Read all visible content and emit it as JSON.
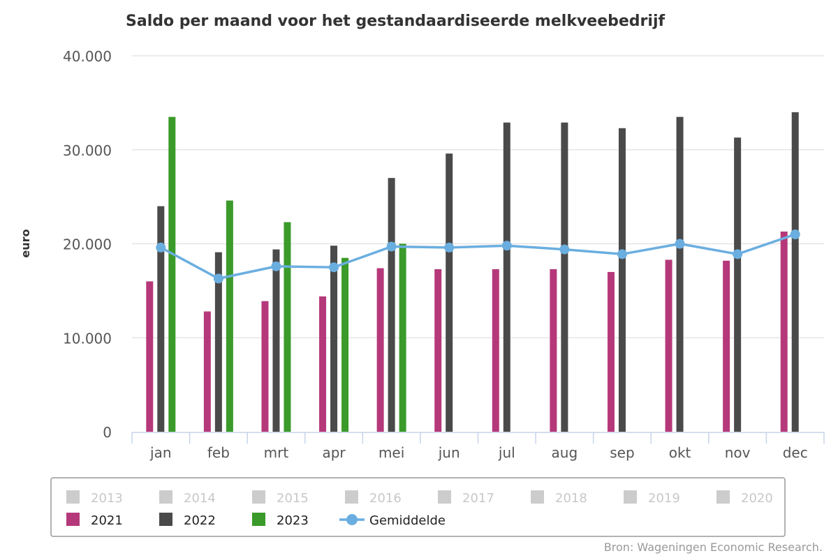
{
  "chart_data": {
    "type": "bar",
    "title": "Saldo per maand voor het gestandaardiseerde melkveebedrijf",
    "ylabel": "euro",
    "xlabel": "",
    "ylim": [
      0,
      40000
    ],
    "yticks": [
      0,
      10000,
      20000,
      30000,
      40000
    ],
    "ytick_labels": [
      "0",
      "10.000",
      "20.000",
      "30.000",
      "40.000"
    ],
    "categories": [
      "jan",
      "feb",
      "mrt",
      "apr",
      "mei",
      "jun",
      "jul",
      "aug",
      "sep",
      "okt",
      "nov",
      "dec"
    ],
    "grid": true,
    "series": [
      {
        "name": "2021",
        "type": "bar",
        "color": "#b5397a",
        "values": [
          16000,
          12800,
          13900,
          14400,
          17400,
          17300,
          17300,
          17300,
          17000,
          18300,
          18200,
          21300
        ]
      },
      {
        "name": "2022",
        "type": "bar",
        "color": "#4a4a4a",
        "values": [
          24000,
          19100,
          19400,
          19800,
          27000,
          29600,
          32900,
          32900,
          32300,
          33500,
          31300,
          34000
        ]
      },
      {
        "name": "2023",
        "type": "bar",
        "color": "#3a9a2a",
        "values": [
          33500,
          24600,
          22300,
          18500,
          20000,
          null,
          null,
          null,
          null,
          null,
          null,
          null
        ]
      },
      {
        "name": "Gemiddelde",
        "type": "line",
        "color": "#6aaee0",
        "values": [
          19600,
          16300,
          17600,
          17500,
          19700,
          19600,
          19800,
          19400,
          18900,
          20000,
          18900,
          21000
        ]
      }
    ],
    "legend": {
      "placement": "bottom",
      "inactive": [
        "2013",
        "2014",
        "2015",
        "2016",
        "2017",
        "2018",
        "2019",
        "2020"
      ],
      "inactive_color": "#cccccc",
      "active": [
        "2021",
        "2022",
        "2023",
        "Gemiddelde"
      ]
    },
    "source": "Bron: Wageningen Economic Research."
  }
}
